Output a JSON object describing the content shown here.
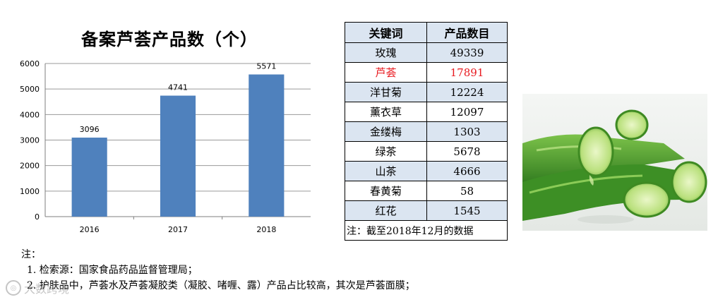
{
  "chart_data": {
    "type": "bar",
    "title": "备案芦荟产品数（个）",
    "categories": [
      "2016",
      "2017",
      "2018"
    ],
    "values": [
      3096,
      4741,
      5571
    ],
    "ylim": [
      0,
      6000
    ],
    "yticks": [
      "0",
      "1000",
      "2000",
      "3000",
      "4000",
      "5000",
      "6000"
    ],
    "grid": true,
    "bar_color": "#4f81bd"
  },
  "table": {
    "headers": [
      "关键词",
      "产品数目"
    ],
    "rows": [
      {
        "keyword": "玫瑰",
        "count": "49339"
      },
      {
        "keyword": "芦荟",
        "count": "17891"
      },
      {
        "keyword": "洋甘菊",
        "count": "12224"
      },
      {
        "keyword": "薰衣草",
        "count": "12097"
      },
      {
        "keyword": "金缕梅",
        "count": "1303"
      },
      {
        "keyword": "绿茶",
        "count": "5678"
      },
      {
        "keyword": "山茶",
        "count": "4666"
      },
      {
        "keyword": "春黄菊",
        "count": "58"
      },
      {
        "keyword": "红花",
        "count": "1545"
      }
    ],
    "note": "注：截至2018年12月的数据",
    "highlight_color": "#e8191f"
  },
  "notes": {
    "heading": "注：",
    "items": [
      "1.  检索源：国家食品药品监督管理局；",
      "2.  护肤品中，芦荟水及芦荟凝胶类（凝胶、啫喱、露）产品占比较高，其次是芦荟面膜；"
    ]
  },
  "watermark": "大数跨境"
}
